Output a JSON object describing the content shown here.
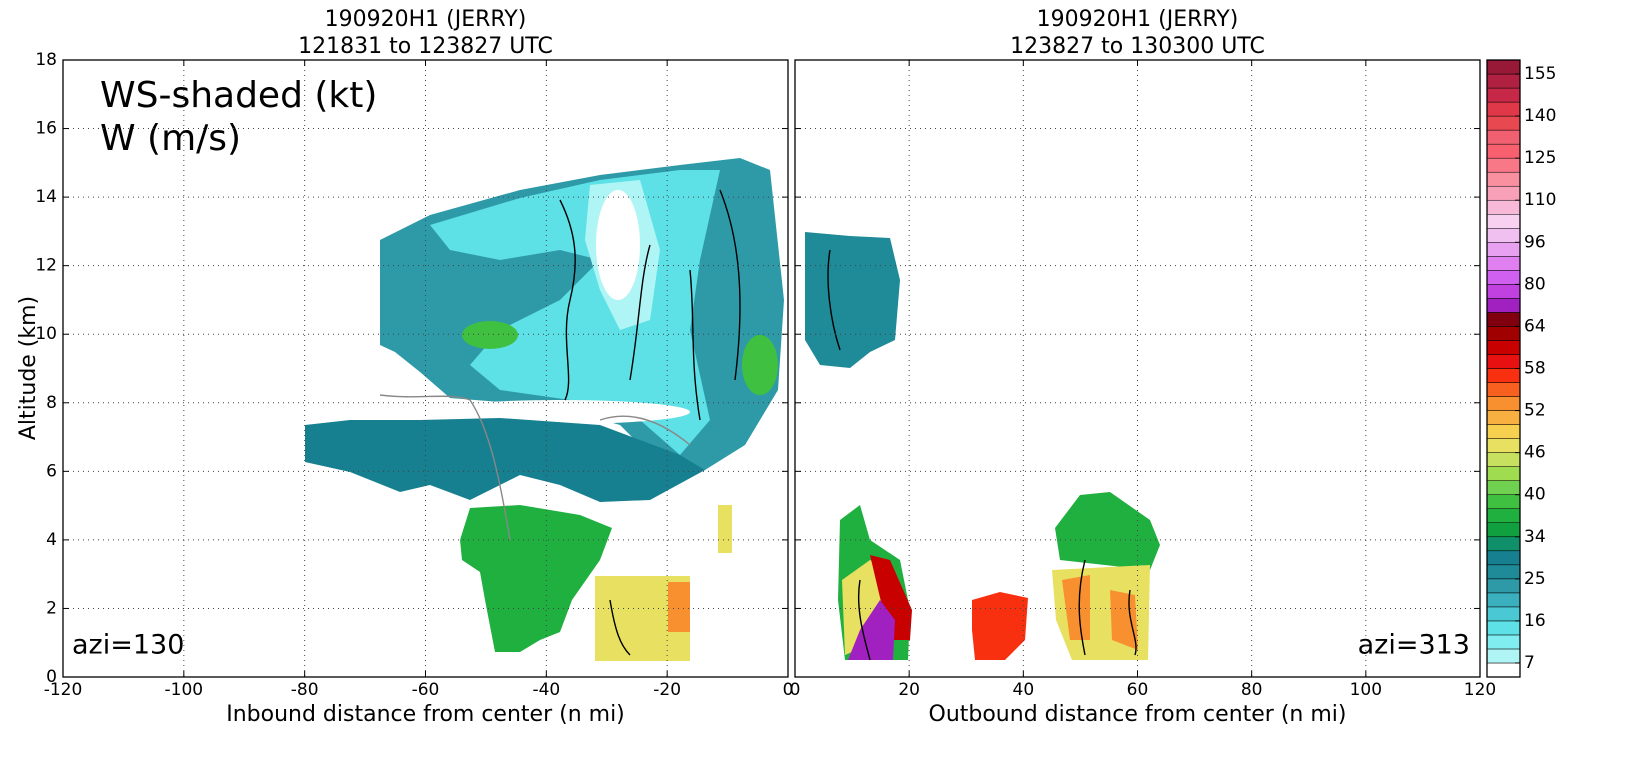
{
  "chart_data": [
    {
      "type": "contour",
      "title": "190920H1 (JERRY)",
      "subtitle": "121831 to 123827 UTC",
      "xlabel": "Inbound distance from center (n mi)",
      "ylabel": "Altitude (km)",
      "xlim": [
        -120,
        0
      ],
      "xticks": [
        -120,
        -100,
        -80,
        -60,
        -40,
        -20,
        0
      ],
      "ylim": [
        0,
        18
      ],
      "yticks": [
        0,
        2,
        4,
        6,
        8,
        10,
        12,
        14,
        16,
        18
      ],
      "grid": true,
      "annotations": [
        "WS-shaded (kt)",
        "W (m/s)",
        "azi=130"
      ]
    },
    {
      "type": "contour",
      "title": "190920H1 (JERRY)",
      "subtitle": "123827 to 130300 UTC",
      "xlabel": "Outbound distance from center (n mi)",
      "xlim": [
        0,
        120
      ],
      "xticks": [
        0,
        20,
        40,
        60,
        80,
        100,
        120
      ],
      "sharey": true,
      "grid": true,
      "annotations": [
        "azi=313"
      ]
    }
  ],
  "colorbar": {
    "ticks": [
      7,
      16,
      25,
      34,
      40,
      46,
      52,
      58,
      64,
      80,
      96,
      110,
      125,
      140,
      155
    ],
    "colors": [
      "#ffffff",
      "#b0f5f5",
      "#80eef0",
      "#5de0e6",
      "#4ac8d4",
      "#3ab0be",
      "#2e9aa8",
      "#1f8a98",
      "#178090",
      "#10906a",
      "#10a040",
      "#20b040",
      "#40c040",
      "#70d050",
      "#a0dc50",
      "#c8e060",
      "#e8e060",
      "#f8d050",
      "#f8b040",
      "#f89030",
      "#f86020",
      "#f83010",
      "#e81010",
      "#c80000",
      "#a00000",
      "#800010",
      "#a020c0",
      "#c040e0",
      "#d060f0",
      "#e080f0",
      "#e8a0f0",
      "#f0c0f0",
      "#f8d0f0",
      "#f8b8d8",
      "#f8a0b8",
      "#f890a0",
      "#f87888",
      "#f86070",
      "#f06070",
      "#e84850",
      "#e03848",
      "#c82848",
      "#b02040",
      "#981838"
    ]
  }
}
